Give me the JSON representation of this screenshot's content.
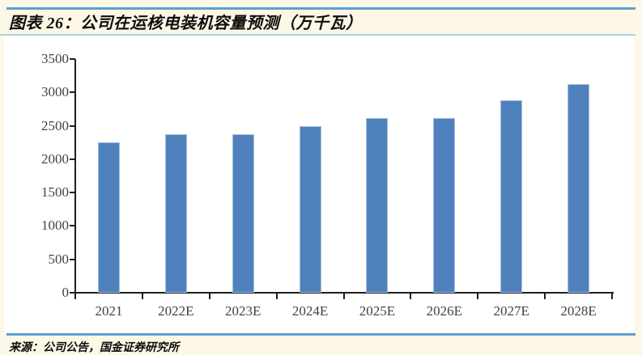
{
  "chart_data": {
    "type": "bar",
    "title": "图表 26：公司在运核电装机容量预测（万千瓦）",
    "unit": "万千瓦",
    "categories": [
      "2021",
      "2022E",
      "2023E",
      "2024E",
      "2025E",
      "2026E",
      "2027E",
      "2028E"
    ],
    "values": [
      2250,
      2370,
      2370,
      2500,
      2610,
      2610,
      2880,
      3120
    ],
    "ylim": [
      0,
      3500
    ],
    "ytick_step": 500,
    "grid": false,
    "legend": null,
    "bar_color": "#4F81BD",
    "bar_border_color": "#A3BEDF",
    "axis_color": "#1F1F1F",
    "tick_label_color": "#3F4347"
  },
  "footer": {
    "source": "来源：公司公告，国金证券研究所"
  },
  "colors": {
    "page_background": "#FCF7E6",
    "canvas_background": "#FFFFFF",
    "rule_blue": "#5B9FD8",
    "rule_light_blue": "#ABD4EE",
    "title_text": "#0D0D0D"
  }
}
